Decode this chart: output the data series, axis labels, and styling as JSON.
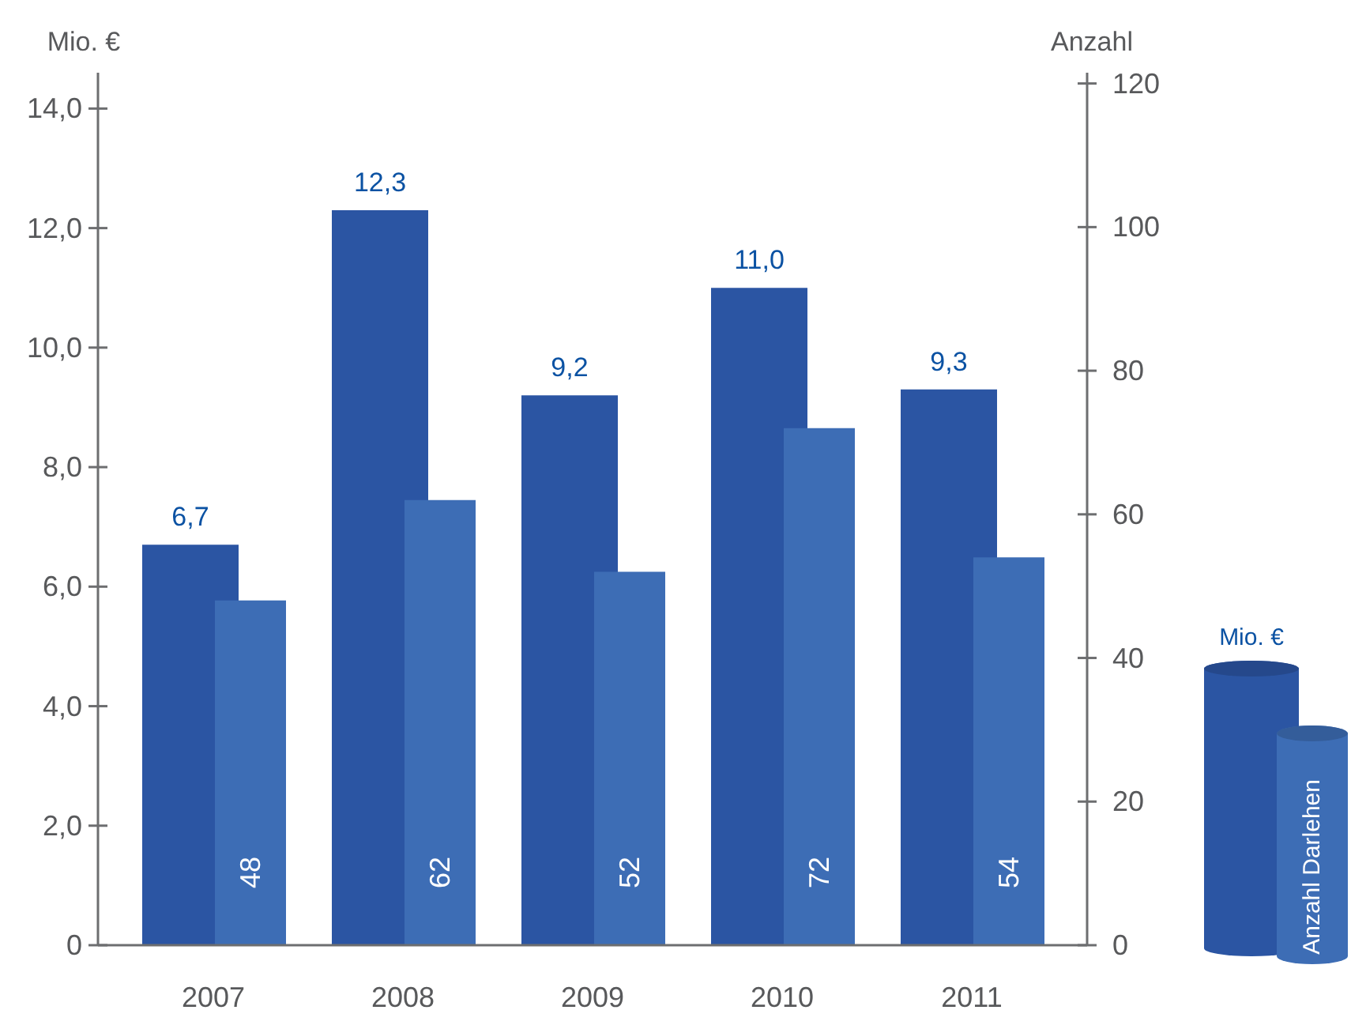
{
  "chart_data": {
    "type": "bar",
    "categories": [
      "2007",
      "2008",
      "2009",
      "2010",
      "2011"
    ],
    "series": [
      {
        "name": "Mio. €",
        "color": "#2b55a3",
        "values": [
          6.7,
          12.3,
          9.2,
          11.0,
          9.3
        ],
        "value_labels": [
          "6,7",
          "12,3",
          "9,2",
          "11,0",
          "9,3"
        ]
      },
      {
        "name": "Anzahl Darlehen",
        "color": "#3d6db5",
        "axis": "y2",
        "values": [
          48,
          62,
          52,
          72,
          54
        ],
        "value_labels": [
          "48",
          "62",
          "52",
          "72",
          "54"
        ]
      }
    ],
    "ylabel": "Mio. €",
    "y2label": "Anzahl",
    "ylim": [
      0,
      14.6
    ],
    "yticks": [
      0,
      {
        "value": 2,
        "label": "2,0"
      },
      {
        "value": 4,
        "label": "4,0"
      },
      {
        "value": 6,
        "label": "6,0"
      },
      {
        "value": 8,
        "label": "8,0"
      },
      {
        "value": 10,
        "label": "10,0"
      },
      {
        "value": 12,
        "label": "12,0"
      },
      {
        "value": 14,
        "label": "14,0"
      }
    ],
    "y2lim": [
      0,
      121.5
    ],
    "y2ticks": [
      0,
      20,
      40,
      60,
      80,
      100,
      120
    ],
    "legend": "right"
  }
}
